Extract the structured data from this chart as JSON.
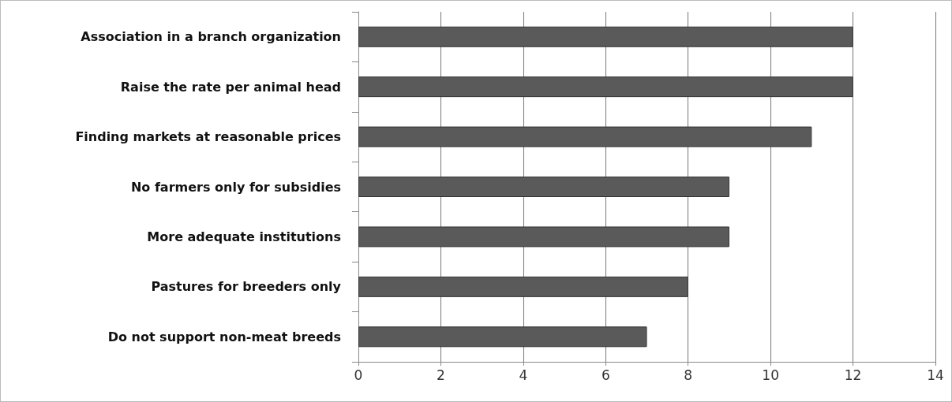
{
  "chart_data": {
    "type": "bar",
    "orientation": "horizontal",
    "categories": [
      "Association in a branch organization",
      "Raise the rate per animal head",
      "Finding markets at reasonable prices",
      "No farmers only for subsidies",
      "More adequate institutions",
      "Pastures for breeders only",
      "Do not support non-meat breeds"
    ],
    "values": [
      12,
      12,
      11,
      9,
      9,
      8,
      7
    ],
    "color": "#5a5a5a",
    "xlim": [
      0,
      14
    ],
    "xticks": [
      0,
      2,
      4,
      6,
      8,
      10,
      12,
      14
    ],
    "grid": "x"
  }
}
